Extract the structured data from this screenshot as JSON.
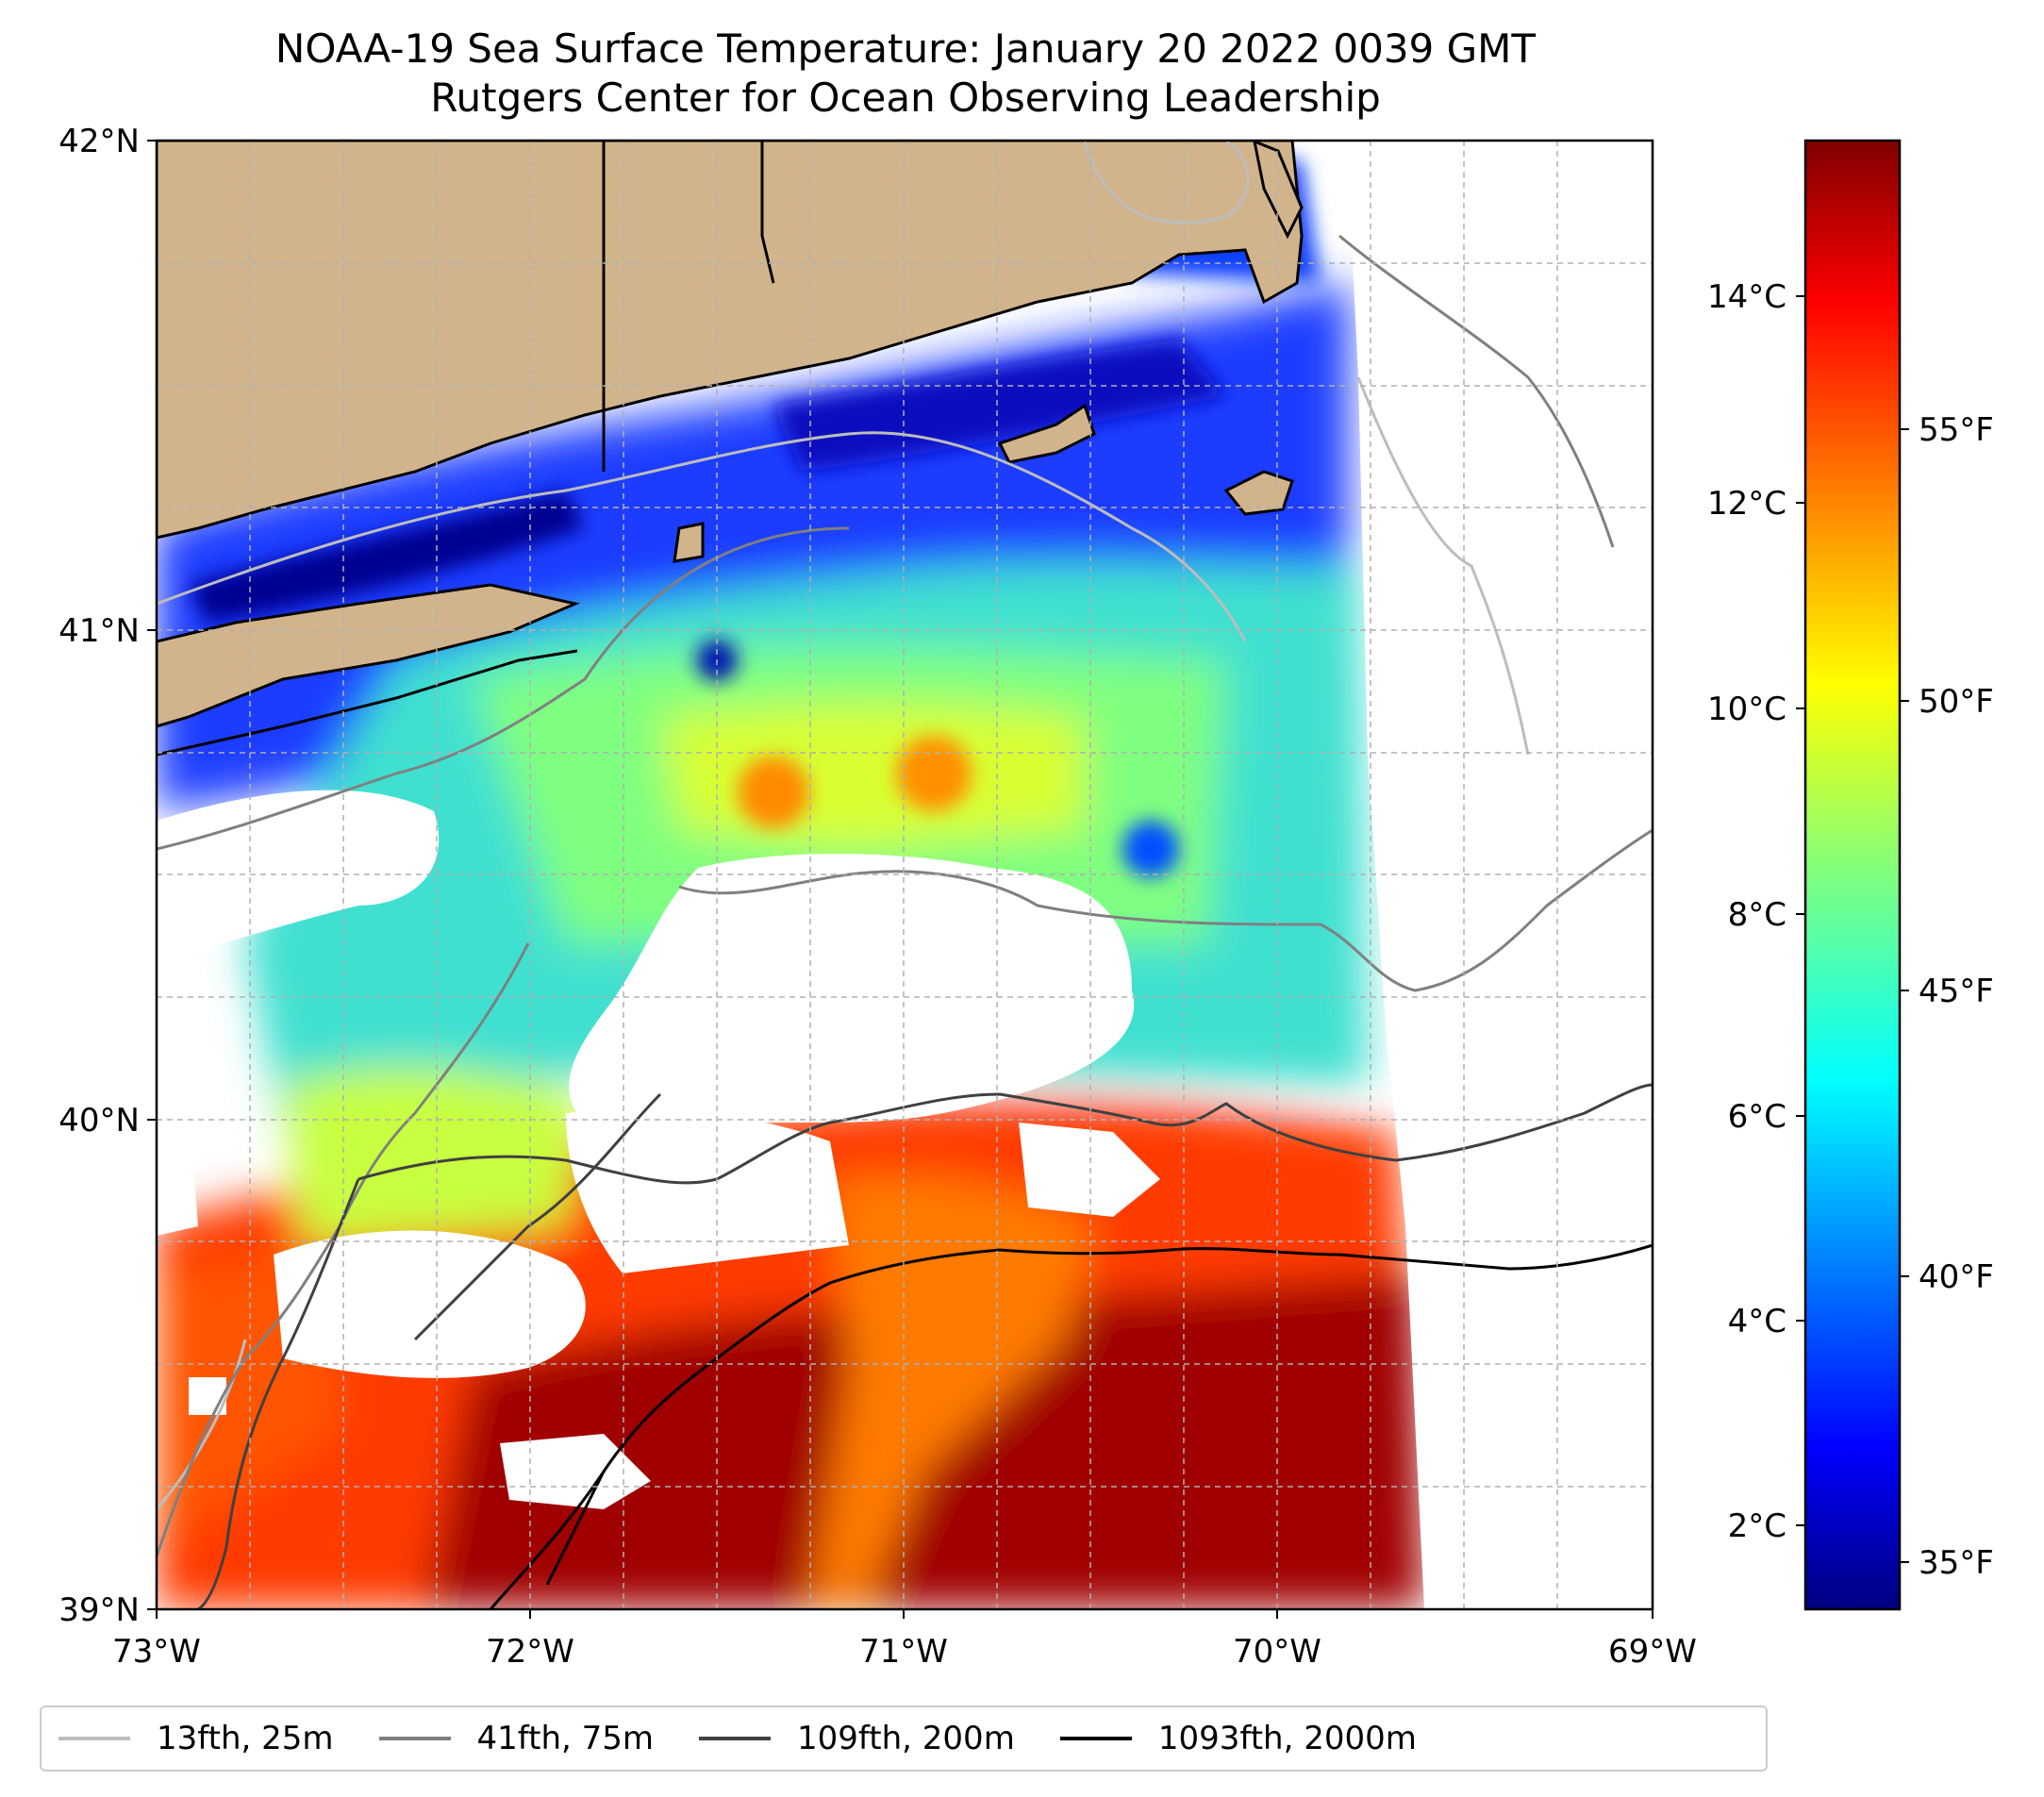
{
  "title": {
    "line1": "NOAA-19 Sea Surface Temperature: January 20 2022 0039 GMT",
    "line2": "Rutgers Center for Ocean Observing Leadership"
  },
  "colors": {
    "land": "#d2b48c",
    "coast": "#000000",
    "grid": "#b0b0b0",
    "iso_25m": "#bdbdbd",
    "iso_75m": "#808080",
    "iso_200m": "#404040",
    "iso_2000m": "#000000"
  },
  "chart_data": {
    "type": "heatmap",
    "map_extent": {
      "lon": [
        -73,
        -69
      ],
      "lat": [
        39,
        42
      ]
    },
    "lon_ticks": [
      "73°W",
      "72°W",
      "71°W",
      "70°W",
      "69°W"
    ],
    "lat_ticks": [
      "42°N",
      "41°N",
      "40°N",
      "39°N"
    ],
    "colorbar": {
      "colormap": "jet",
      "range_c": [
        1.3,
        15.5
      ],
      "celsius_ticks": [
        "14°C",
        "12°C",
        "10°C",
        "8°C",
        "6°C",
        "4°C",
        "2°C"
      ],
      "fahrenheit_ticks": [
        "55°F",
        "50°F",
        "45°F",
        "40°F",
        "35°F"
      ]
    },
    "legend": [
      {
        "label": "13fth, 25m",
        "color": "#bdbdbd"
      },
      {
        "label": "41fth, 75m",
        "color": "#808080"
      },
      {
        "label": "109fth, 200m",
        "color": "#404040"
      },
      {
        "label": "1093fth, 2000m",
        "color": "#000000"
      }
    ]
  }
}
